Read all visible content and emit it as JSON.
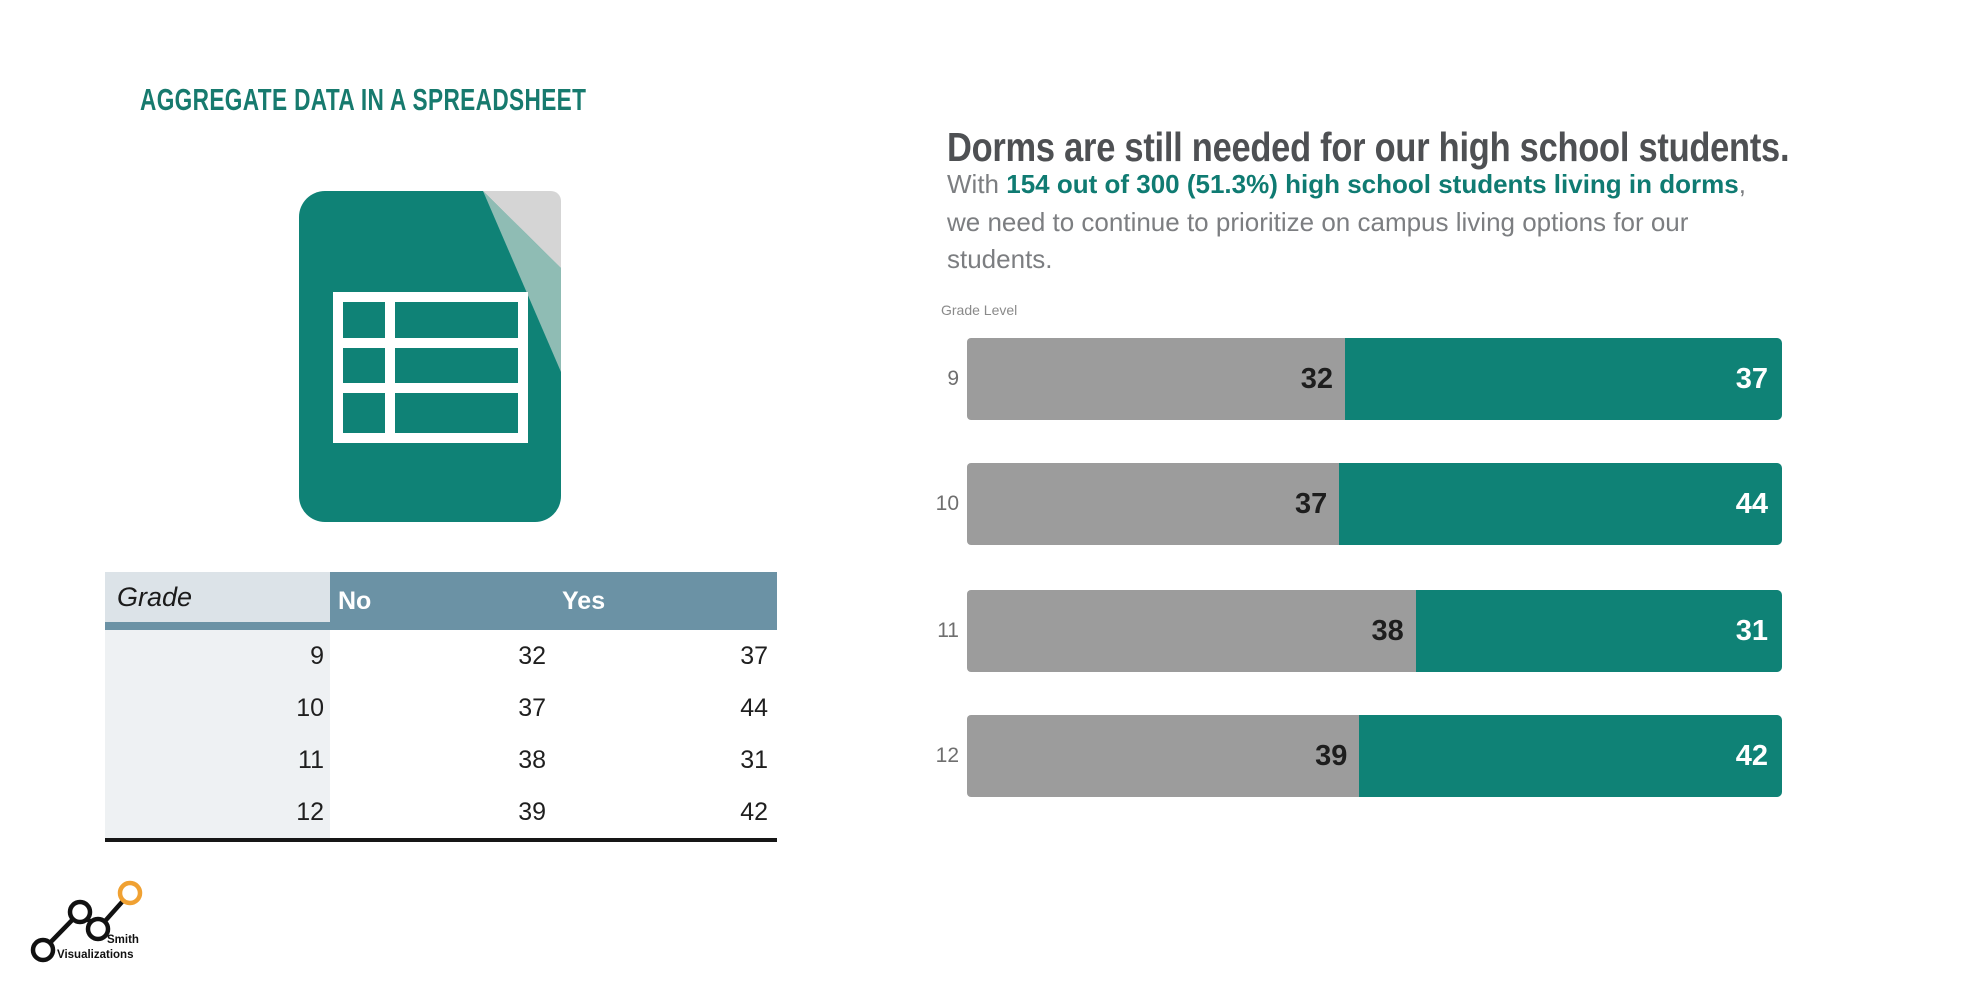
{
  "page": {
    "background": "#ffffff"
  },
  "left": {
    "title": "AGGREGATE DATA IN A SPREADSHEET",
    "title_color": "#177a6e",
    "spreadsheet_icon": {
      "name": "spreadsheet-document-icon",
      "document_color": "#0f8276",
      "fold_outer_color": "#d5d5d5",
      "fold_inner_color": "#8fbcb4",
      "grid_color": "#ffffff"
    },
    "table": {
      "columns": [
        "Grade",
        "No",
        "Yes"
      ],
      "rows": [
        [
          "9",
          "32",
          "37"
        ],
        [
          "10",
          "37",
          "44"
        ],
        [
          "11",
          "38",
          "31"
        ],
        [
          "12",
          "39",
          "42"
        ]
      ],
      "header_bg": "#6b92a5",
      "grade_header_bg": "#dce3e8",
      "grade_column_bg": "#eef1f3"
    }
  },
  "right": {
    "heading": "Dorms are still needed for our high school students.",
    "subtitle_prefix": "With ",
    "subtitle_highlight": "154 out of 300 (51.3%) high school students living in dorms",
    "subtitle_suffix": ", we need to continue to prioritize on campus living options for our students.",
    "axis_label": "Grade Level",
    "heading_color": "#4e5053",
    "subtitle_color": "#7c7e81",
    "highlight_color": "#0f7b72"
  },
  "chart_data": {
    "type": "bar",
    "orientation": "horizontal",
    "stacking": "100%-stacked",
    "title": "Dorms are still needed for our high school students.",
    "axis_label": "Grade Level",
    "categories": [
      "9",
      "10",
      "11",
      "12"
    ],
    "series": [
      {
        "name": "No",
        "color": "#9c9c9c",
        "values": [
          32,
          37,
          38,
          39
        ]
      },
      {
        "name": "Yes",
        "color": "#0f8276",
        "values": [
          37,
          44,
          31,
          42
        ]
      }
    ],
    "value_labels": true,
    "legend": "none",
    "grid": false
  },
  "logo": {
    "line1": "Smith",
    "line2": "Visualizations",
    "accent_color": "#f0a132"
  }
}
